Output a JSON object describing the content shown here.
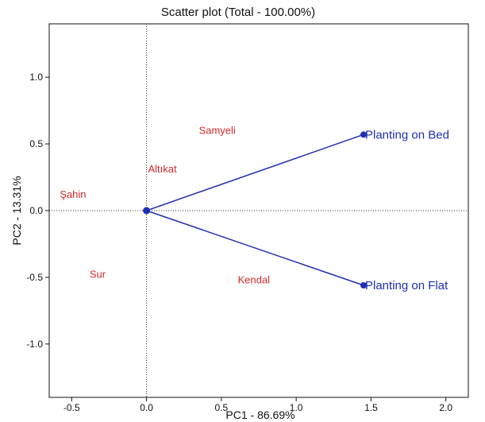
{
  "chart_data": {
    "type": "scatter",
    "title": "Scatter plot (Total - 100.00%)",
    "xlabel": "PC1 - 86.69%",
    "ylabel": "PC2 - 13.31%",
    "xlim": [
      -0.65,
      2.15
    ],
    "ylim": [
      -1.4,
      1.4
    ],
    "xticks": [
      "-0.5",
      "0.0",
      "0.5",
      "1.0",
      "1.5",
      "2.0"
    ],
    "xtick_values": [
      -0.5,
      0,
      0.5,
      1,
      1.5,
      2
    ],
    "yticks": [
      "1.0",
      "0.5",
      "0.0",
      "-0.5",
      "-1.0"
    ],
    "ytick_values": [
      1,
      0.5,
      0,
      -0.5,
      -1
    ],
    "grid": false,
    "reference_lines": {
      "x": 0,
      "y": 0,
      "style": "dotted"
    },
    "observations": [
      {
        "label": "Samyeli",
        "x": 0.35,
        "y": 0.6
      },
      {
        "label": "Altıkat",
        "x": 0.01,
        "y": 0.31
      },
      {
        "label": "Şahin",
        "x": -0.58,
        "y": 0.12
      },
      {
        "label": "Sur",
        "x": -0.38,
        "y": -0.48
      },
      {
        "label": "Kendal",
        "x": 0.61,
        "y": -0.52
      }
    ],
    "variables": [
      {
        "label": "Planting on Bed",
        "x": 1.45,
        "y": 0.57
      },
      {
        "label": "Planting on Flat",
        "x": 1.45,
        "y": -0.56
      }
    ],
    "origin": {
      "x": 0,
      "y": 0
    }
  },
  "colors": {
    "observation": "#d42a2a",
    "variable": "#1f2fb3",
    "axis": "#111111",
    "reference": "#333333"
  }
}
